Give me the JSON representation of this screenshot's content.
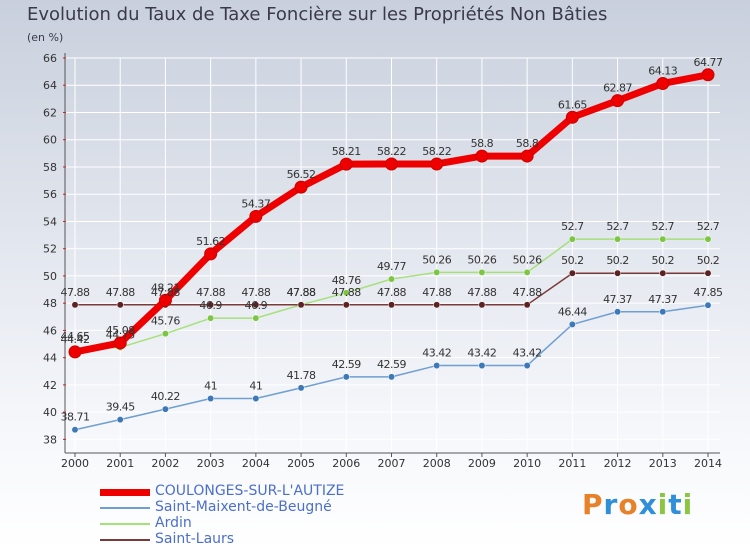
{
  "header": {
    "title": "Evolution du Taux de Taxe Foncière sur les Propriétés Non Bâties",
    "unit": "(en %)"
  },
  "logo": {
    "text": "Proxiti",
    "letters": [
      "P",
      "r",
      "o",
      "x",
      "i",
      "t",
      "i"
    ],
    "colors": [
      "#e8822a",
      "#2f8fd8",
      "#e8822a",
      "#2f8fd8",
      "#8cc640",
      "#2f8fd8",
      "#8cc640"
    ]
  },
  "colors": {
    "bg_top": "#c9d0dd",
    "bg_bottom": "#ffffff",
    "axis": "#555555",
    "grid": "#ffffff",
    "label": "#333333"
  },
  "chart_data": {
    "type": "line",
    "x": [
      "2000",
      "2001",
      "2002",
      "2003",
      "2004",
      "2005",
      "2006",
      "2007",
      "2008",
      "2009",
      "2010",
      "2011",
      "2012",
      "2013",
      "2014"
    ],
    "ylim": [
      37,
      66
    ],
    "yticks": [
      38,
      40,
      42,
      44,
      46,
      48,
      50,
      52,
      54,
      56,
      58,
      60,
      62,
      64,
      66
    ],
    "grid": true,
    "legend_position": "bottom-left",
    "series": [
      {
        "name": "COULONGES-SUR-L'AUTIZE",
        "color": "#ee0000",
        "marker": "#ee0000",
        "width": 7,
        "values": [
          44.42,
          45.08,
          48.21,
          51.62,
          54.37,
          56.52,
          58.21,
          58.22,
          58.22,
          58.8,
          58.8,
          61.65,
          62.87,
          64.13,
          64.77
        ],
        "labels": [
          "44.42",
          "45.08",
          "48.21",
          "51.62",
          "54.37",
          "56.52",
          "58.21",
          "58.22",
          "58.22",
          "58.8",
          "58.8",
          "61.65",
          "62.87",
          "64.13",
          "64.77"
        ]
      },
      {
        "name": "Saint-Maixent-de-Beugné",
        "color": "#6f9fd0",
        "marker": "#3d78b8",
        "width": 1.5,
        "values": [
          38.71,
          39.45,
          40.22,
          41,
          41,
          41.78,
          42.59,
          42.59,
          43.42,
          43.42,
          43.42,
          46.44,
          47.37,
          47.37,
          47.85
        ],
        "labels": [
          "38.71",
          "39.45",
          "40.22",
          "41",
          "41",
          "41.78",
          "42.59",
          "42.59",
          "43.42",
          "43.42",
          "43.42",
          "46.44",
          "47.37",
          "47.37",
          "47.85"
        ]
      },
      {
        "name": "Ardin",
        "color": "#a6e07a",
        "marker": "#7cc644",
        "width": 1.5,
        "values": [
          44.65,
          44.75,
          45.76,
          46.9,
          46.9,
          47.88,
          48.76,
          49.77,
          50.26,
          50.26,
          50.26,
          52.7,
          52.7,
          52.7,
          52.7
        ],
        "labels": [
          "44.65",
          "44.75",
          "45.76",
          "46.9",
          "46.9",
          "47.88",
          "48.76",
          "49.77",
          "50.26",
          "50.26",
          "50.26",
          "52.7",
          "52.7",
          "52.7",
          "52.7"
        ]
      },
      {
        "name": "Saint-Laurs",
        "color": "#7a3a3a",
        "marker": "#5c2222",
        "width": 1.5,
        "values": [
          47.88,
          47.88,
          47.88,
          47.88,
          47.88,
          47.88,
          47.88,
          47.88,
          47.88,
          47.88,
          47.88,
          50.2,
          50.2,
          50.2,
          50.2
        ],
        "labels": [
          "47.88",
          "47.88",
          "47.88",
          "47.88",
          "47.88",
          "47.88",
          "47.88",
          "47.88",
          "47.88",
          "47.88",
          "47.88",
          "50.2",
          "50.2",
          "50.2",
          "50.2"
        ]
      }
    ]
  }
}
